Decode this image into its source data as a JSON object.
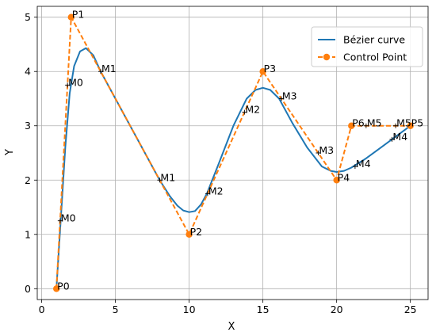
{
  "chart_data": {
    "type": "line",
    "title": "",
    "xlabel": "X",
    "ylabel": "Y",
    "xlim": [
      -0.3,
      26.2
    ],
    "ylim": [
      -0.2,
      5.2
    ],
    "x_ticks": [
      0,
      5,
      10,
      15,
      20,
      25
    ],
    "y_ticks": [
      0,
      1,
      2,
      3,
      4,
      5
    ],
    "grid": true,
    "legend_position": "top-right",
    "colors": {
      "curve": "#1f77b4",
      "control": "#ff7f0e"
    },
    "series": [
      {
        "name": "Bézier curve",
        "style": "solid",
        "x": [
          1,
          1.3,
          1.6,
          1.9,
          2.2,
          2.6,
          3.0,
          3.5,
          4.0,
          5.0,
          6.0,
          7.0,
          8.0,
          8.7,
          9.2,
          9.6,
          10.0,
          10.4,
          10.8,
          11.2,
          12.0,
          13.0,
          13.9,
          14.5,
          15.0,
          15.5,
          16.1,
          17.0,
          18.0,
          19.0,
          19.6,
          20.0,
          20.5,
          21.0,
          22.0,
          23.0,
          24.0,
          25.0
        ],
        "y": [
          0,
          1.3,
          2.6,
          3.6,
          4.1,
          4.37,
          4.43,
          4.3,
          4.0,
          3.5,
          3.0,
          2.5,
          2.0,
          1.7,
          1.53,
          1.44,
          1.41,
          1.43,
          1.55,
          1.75,
          2.3,
          3.0,
          3.5,
          3.66,
          3.7,
          3.66,
          3.5,
          3.05,
          2.6,
          2.25,
          2.17,
          2.15,
          2.17,
          2.23,
          2.4,
          2.6,
          2.8,
          3.0
        ]
      },
      {
        "name": "Control Point",
        "style": "dashed-markers",
        "x": [
          1,
          2,
          10,
          15,
          20,
          21,
          25
        ],
        "y": [
          0,
          5,
          1,
          4,
          2,
          3,
          3
        ]
      }
    ],
    "control_point_labels": [
      {
        "text": "P0",
        "x": 1,
        "y": 0
      },
      {
        "text": "P1",
        "x": 2,
        "y": 5
      },
      {
        "text": "P2",
        "x": 10,
        "y": 1
      },
      {
        "text": "P3",
        "x": 15,
        "y": 4
      },
      {
        "text": "P4",
        "x": 20,
        "y": 2
      },
      {
        "text": "P6",
        "x": 21,
        "y": 3
      },
      {
        "text": "P5",
        "x": 25,
        "y": 3
      }
    ],
    "midpoint_labels": [
      {
        "text": "M0",
        "x": 1.25,
        "y": 1.25
      },
      {
        "text": "M0",
        "x": 1.75,
        "y": 3.75
      },
      {
        "text": "M1",
        "x": 4.0,
        "y": 4.0
      },
      {
        "text": "M1",
        "x": 8.0,
        "y": 2.0
      },
      {
        "text": "M2",
        "x": 11.25,
        "y": 1.75
      },
      {
        "text": "M2",
        "x": 13.75,
        "y": 3.25
      },
      {
        "text": "M3",
        "x": 16.25,
        "y": 3.5
      },
      {
        "text": "M3",
        "x": 18.75,
        "y": 2.5
      },
      {
        "text": "M4",
        "x": 21.25,
        "y": 2.25
      },
      {
        "text": "M4",
        "x": 23.75,
        "y": 2.75
      },
      {
        "text": "M5",
        "x": 22.0,
        "y": 3.0
      },
      {
        "text": "M5",
        "x": 24.0,
        "y": 3.0
      }
    ]
  }
}
